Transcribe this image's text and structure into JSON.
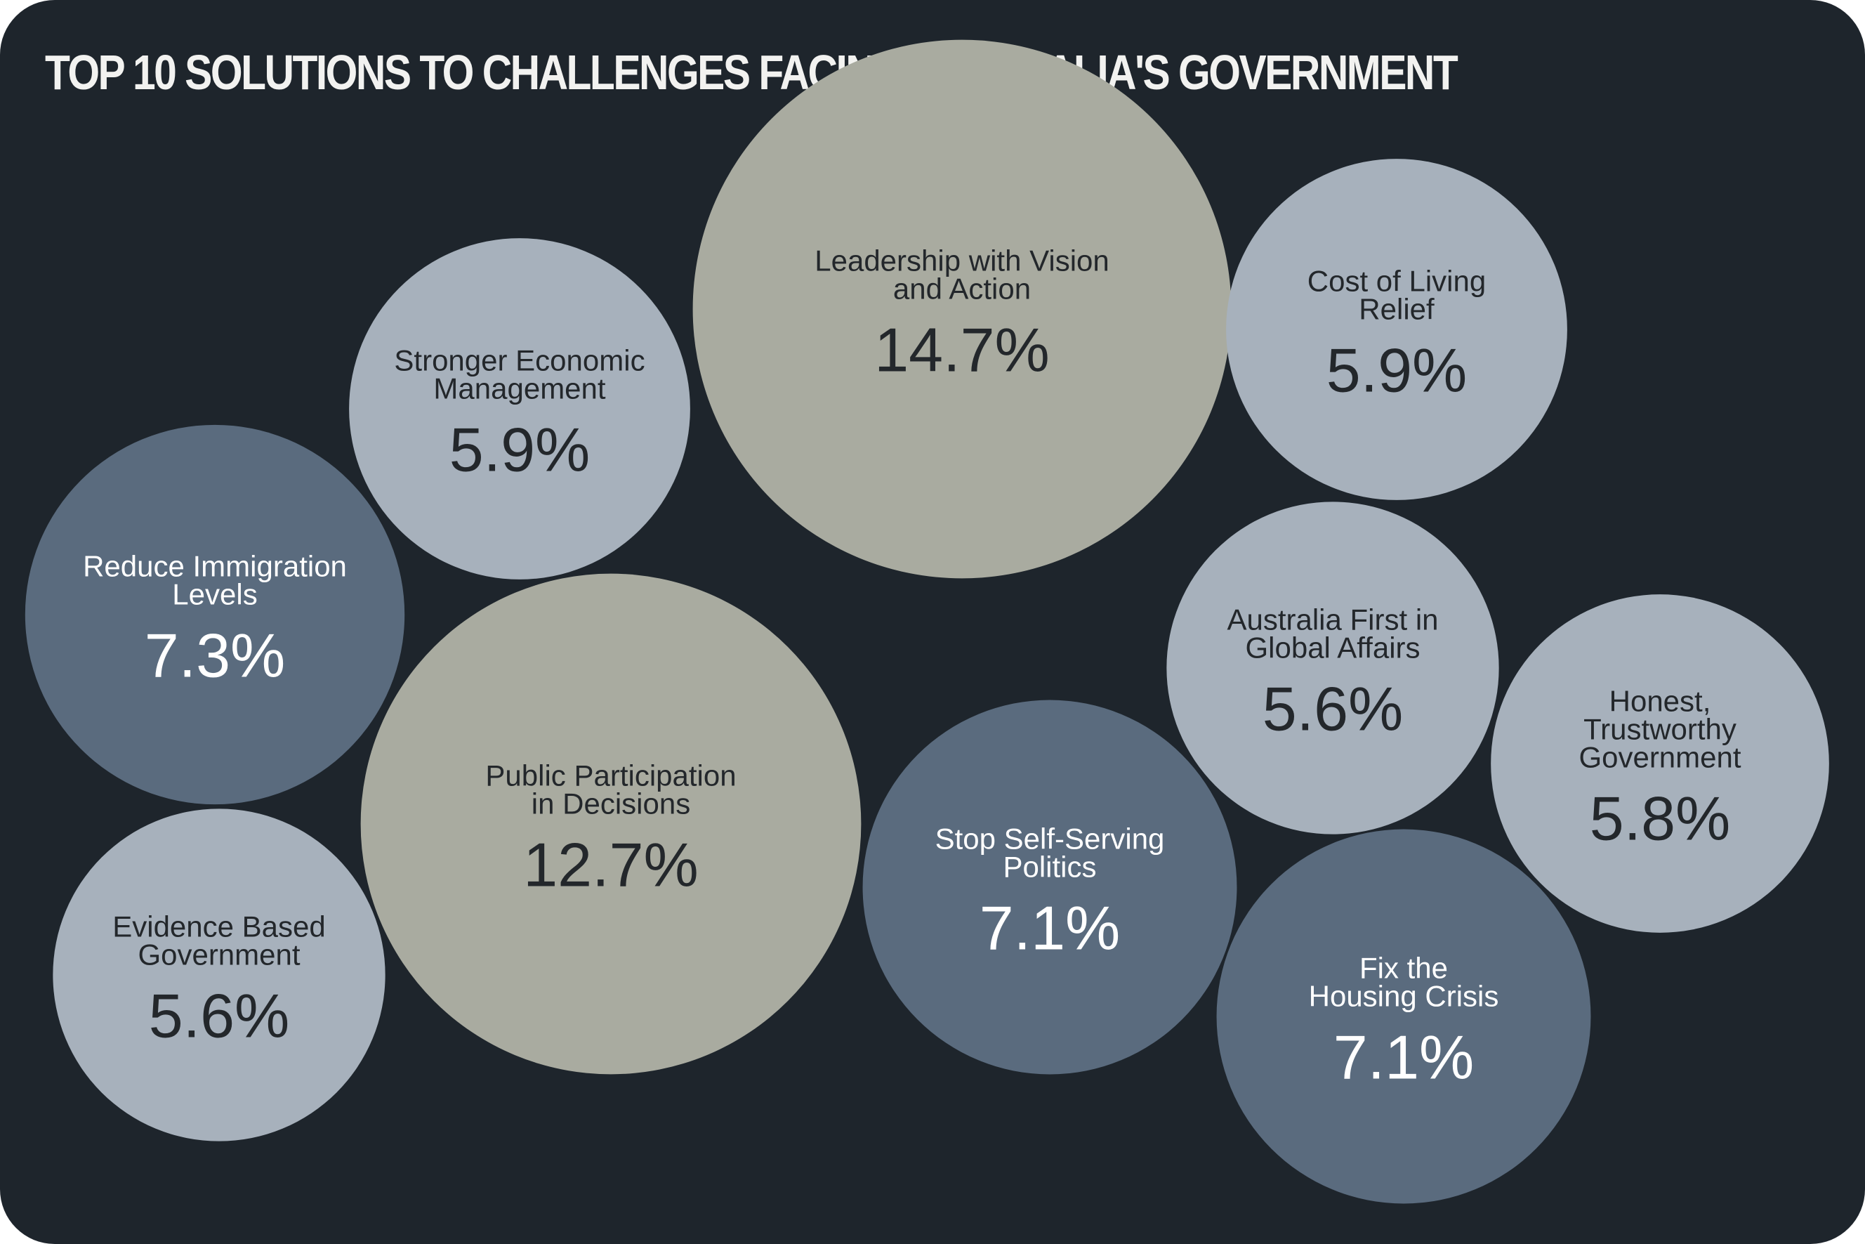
{
  "chart_data": {
    "type": "bubble",
    "title": "TOP 10 SOLUTIONS TO CHALLENGES FACING AUSTRALIA'S GOVERNMENT",
    "unit": "%",
    "series": [
      {
        "name_lines": [
          "Leadership with Vision",
          "and Action"
        ],
        "value": 14.7,
        "value_label": "14.7%",
        "color": "#a9aba0",
        "text_color": "#23272b"
      },
      {
        "name_lines": [
          "Public Participation",
          "in Decisions"
        ],
        "value": 12.7,
        "value_label": "12.7%",
        "color": "#a9aba0",
        "text_color": "#23272b"
      },
      {
        "name_lines": [
          "Reduce Immigration",
          "Levels"
        ],
        "value": 7.3,
        "value_label": "7.3%",
        "color": "#5a6b7e",
        "text_color": "#ffffff"
      },
      {
        "name_lines": [
          "Stop Self-Serving",
          "Politics"
        ],
        "value": 7.1,
        "value_label": "7.1%",
        "color": "#5a6b7e",
        "text_color": "#ffffff"
      },
      {
        "name_lines": [
          "Fix the",
          "Housing Crisis"
        ],
        "value": 7.1,
        "value_label": "7.1%",
        "color": "#5a6b7e",
        "text_color": "#ffffff"
      },
      {
        "name_lines": [
          "Stronger Economic",
          "Management"
        ],
        "value": 5.9,
        "value_label": "5.9%",
        "color": "#a7b1bc",
        "text_color": "#23272b"
      },
      {
        "name_lines": [
          "Cost of Living",
          "Relief"
        ],
        "value": 5.9,
        "value_label": "5.9%",
        "color": "#a7b1bc",
        "text_color": "#23272b"
      },
      {
        "name_lines": [
          "Honest,",
          "Trustworthy",
          "Government"
        ],
        "value": 5.8,
        "value_label": "5.8%",
        "color": "#a7b1bc",
        "text_color": "#23272b"
      },
      {
        "name_lines": [
          "Australia First in",
          "Global Affairs"
        ],
        "value": 5.6,
        "value_label": "5.6%",
        "color": "#a7b1bc",
        "text_color": "#23272b"
      },
      {
        "name_lines": [
          "Evidence Based",
          "Government"
        ],
        "value": 5.6,
        "value_label": "5.6%",
        "color": "#a7b1bc",
        "text_color": "#23272b"
      }
    ],
    "colors": {
      "background": "#1e252c",
      "title": "#f2f2f0"
    }
  }
}
